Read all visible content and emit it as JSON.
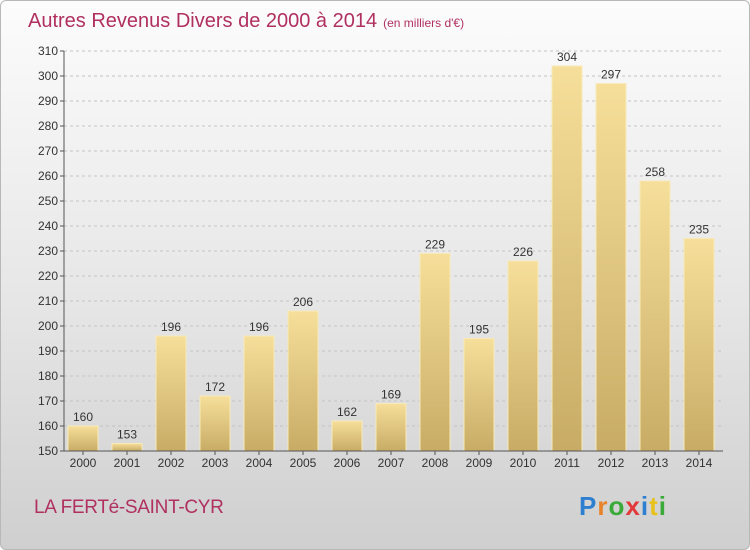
{
  "header": {
    "title": "Autres Revenus Divers de 2000 à 2014",
    "subtitle": "(en milliers d'€)"
  },
  "footer": {
    "city": "LA FERTé-SAINT-CYR",
    "logo_letters": [
      {
        "ch": "P",
        "color": "#2f7fd1"
      },
      {
        "ch": "r",
        "color": "#e8832a"
      },
      {
        "ch": "o",
        "color": "#3aaa3a"
      },
      {
        "ch": "x",
        "color": "#e23a3a"
      },
      {
        "ch": "i",
        "color": "#2f7fd1"
      },
      {
        "ch": "t",
        "color": "#e8c21a"
      },
      {
        "ch": "i",
        "color": "#3aaa3a"
      }
    ]
  },
  "chart_data": {
    "type": "bar",
    "categories": [
      "2000",
      "2001",
      "2002",
      "2003",
      "2004",
      "2005",
      "2006",
      "2007",
      "2008",
      "2009",
      "2010",
      "2011",
      "2012",
      "2013",
      "2014"
    ],
    "values": [
      160,
      153,
      196,
      172,
      196,
      206,
      162,
      169,
      229,
      195,
      226,
      304,
      297,
      258,
      235
    ],
    "ylim": [
      150,
      310
    ],
    "yticks": [
      150,
      160,
      170,
      180,
      190,
      200,
      210,
      220,
      230,
      240,
      250,
      260,
      270,
      280,
      290,
      300,
      310
    ],
    "grid": "horizontal-dashed",
    "bar_color": "#e8cf86"
  }
}
